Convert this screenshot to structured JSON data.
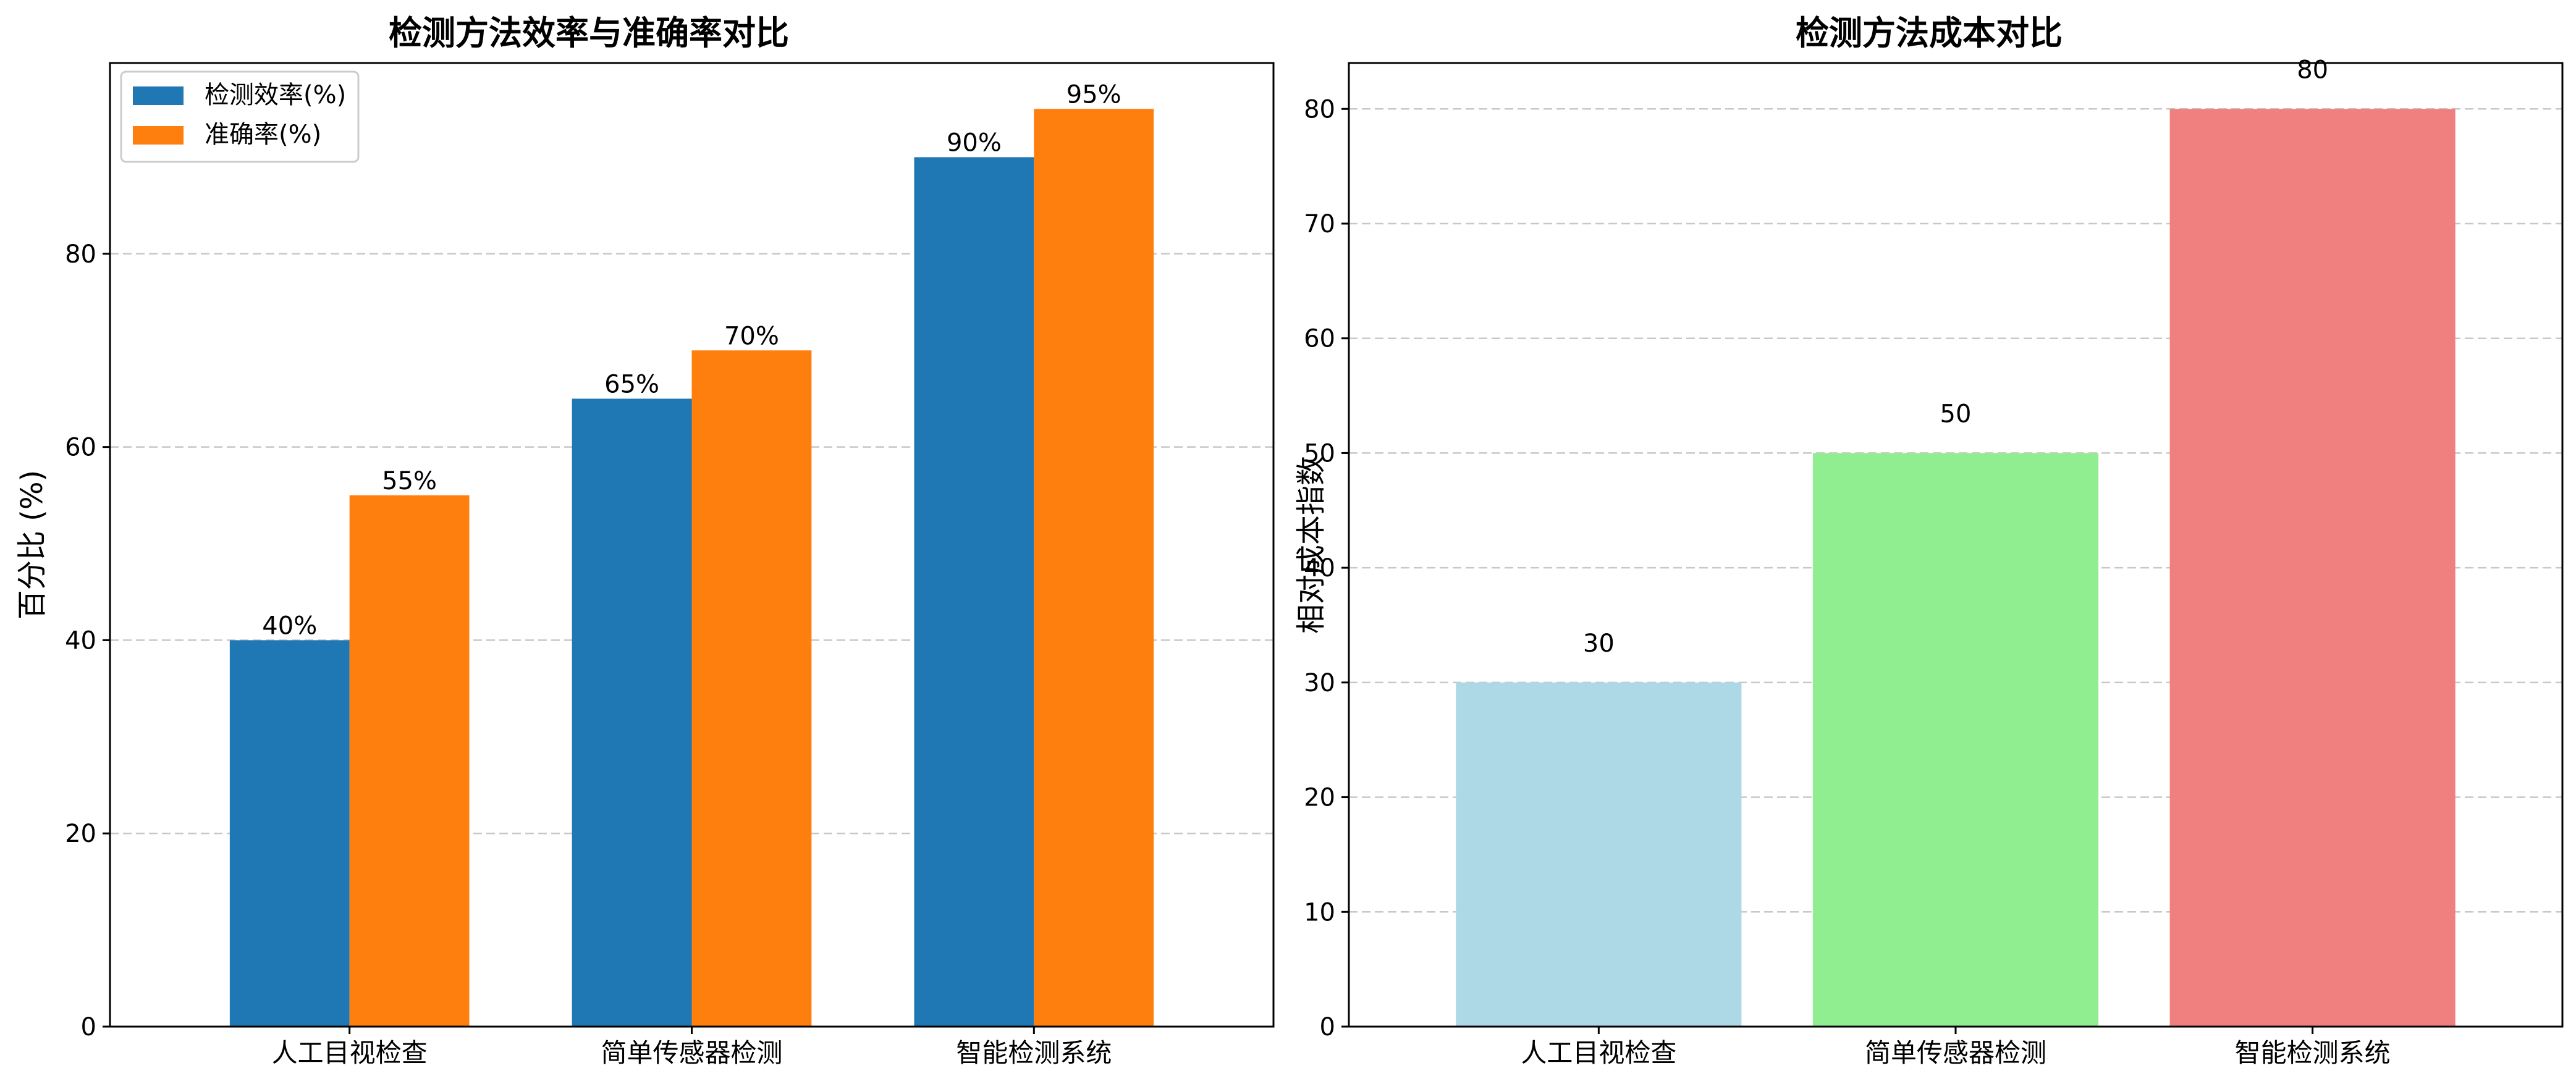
{
  "chart_data": [
    {
      "type": "bar",
      "title": "检测方法效率与准确率对比",
      "xlabel": "",
      "ylabel": "百分比 (%)",
      "categories": [
        "人工目视检查",
        "简单传感器检测",
        "智能检测系统"
      ],
      "series": [
        {
          "name": "检测效率(%)",
          "values": [
            40,
            65,
            90
          ],
          "labels": [
            "40%",
            "65%",
            "90%"
          ],
          "color": "#1f77b4"
        },
        {
          "name": "准确率(%)",
          "values": [
            55,
            70,
            95
          ],
          "labels": [
            "55%",
            "70%",
            "95%"
          ],
          "color": "#ff7f0e"
        }
      ],
      "ylim": [
        0,
        99.75
      ],
      "yticks": [
        0,
        20,
        40,
        60,
        80
      ],
      "yticklabels": [
        "0",
        "20",
        "40",
        "60",
        "80"
      ],
      "grid": "y-dashed",
      "legend": "top-left"
    },
    {
      "type": "bar",
      "title": "检测方法成本对比",
      "xlabel": "",
      "ylabel": "相对成本指数",
      "categories": [
        "人工目视检查",
        "简单传感器检测",
        "智能检测系统"
      ],
      "values": [
        30,
        50,
        80
      ],
      "labels": [
        "30",
        "50",
        "80"
      ],
      "colors": [
        "#add8e6",
        "#90ee90",
        "#f08080"
      ],
      "ylim": [
        0,
        84
      ],
      "yticks": [
        0,
        10,
        20,
        30,
        40,
        50,
        60,
        70,
        80
      ],
      "yticklabels": [
        "0",
        "10",
        "20",
        "30",
        "40",
        "50",
        "60",
        "70",
        "80"
      ],
      "grid": "y-dashed"
    }
  ]
}
